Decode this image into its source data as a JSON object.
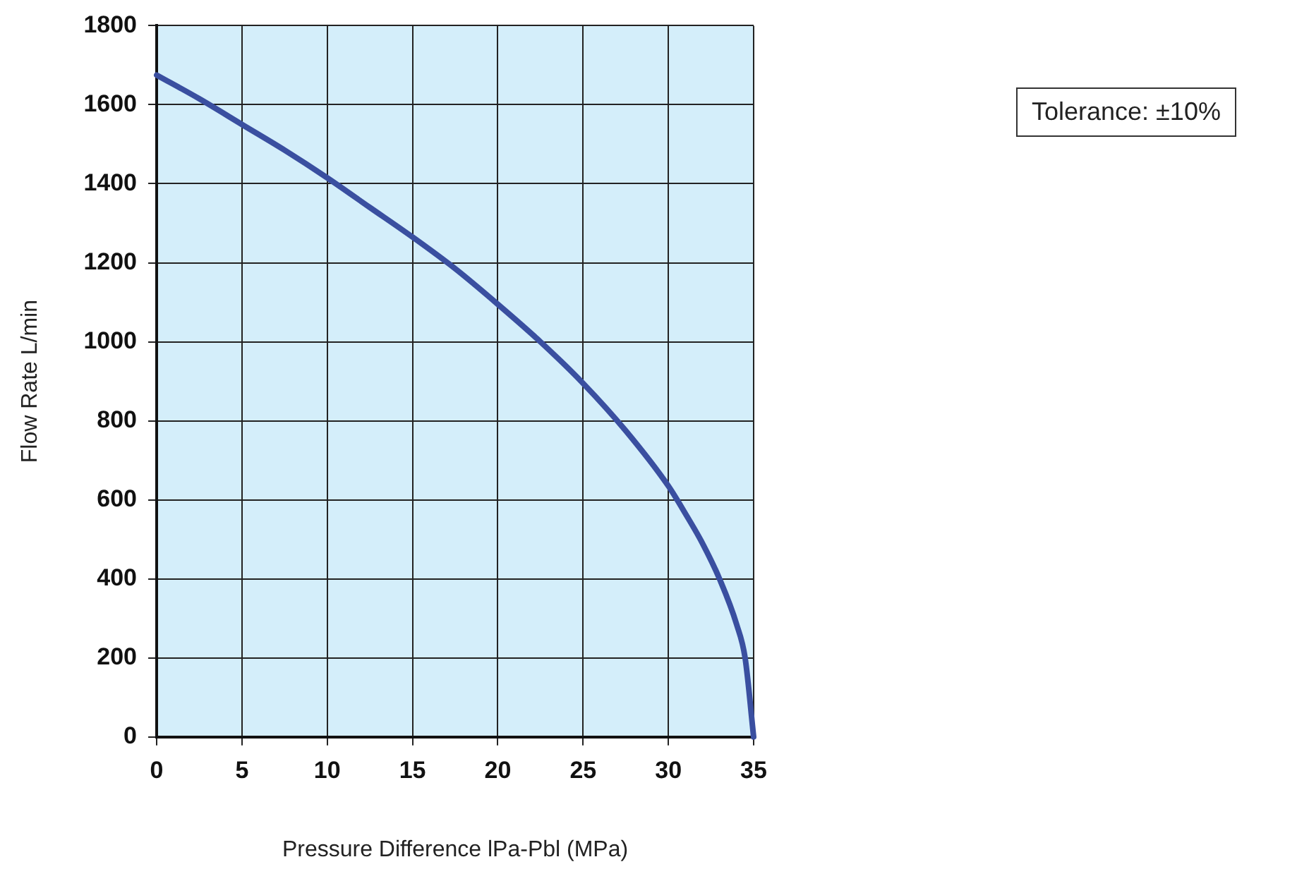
{
  "chart_data": {
    "type": "line",
    "xlabel": "Pressure Difference lPa-Pbl (MPa)",
    "ylabel": "Flow Rate L/min",
    "x": [
      0,
      2.5,
      5,
      7.5,
      10,
      12.5,
      15,
      17.5,
      20,
      22.5,
      25,
      27.5,
      30,
      31,
      32,
      33,
      34,
      34.5,
      35
    ],
    "series": [
      {
        "color": "#3a4fa0",
        "values": [
          1675,
          1615,
          1550,
          1485,
          1415,
          1340,
          1265,
          1185,
          1095,
          1000,
          895,
          775,
          635,
          565,
          490,
          400,
          285,
          200,
          0
        ]
      }
    ],
    "xlim": [
      0,
      35
    ],
    "xticks": [
      0,
      5,
      10,
      15,
      20,
      25,
      30,
      35
    ],
    "ylim": [
      0,
      1800
    ],
    "yticks": [
      0,
      200,
      400,
      600,
      800,
      1000,
      1200,
      1400,
      1600,
      1800
    ],
    "grid": true,
    "legend": false,
    "marker": "none",
    "line_style": "solid",
    "annotations": [
      "Tolerance:  ±10%"
    ]
  }
}
